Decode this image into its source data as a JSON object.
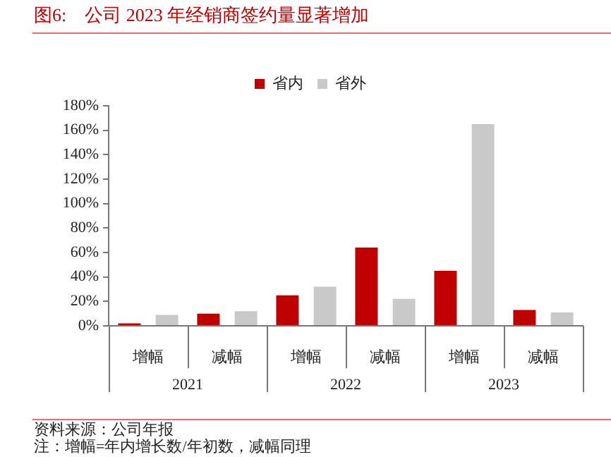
{
  "chart_data": {
    "type": "bar",
    "title": "图6:　公司 2023 年经销商签约量显著增加",
    "categories": [
      "增幅",
      "减幅",
      "增幅",
      "减幅",
      "增幅",
      "减幅"
    ],
    "series": [
      {
        "name": "省内",
        "color": "#c00000",
        "values": [
          2,
          10,
          25,
          64,
          45,
          13
        ]
      },
      {
        "name": "省外",
        "color": "#c9c9c9",
        "values": [
          9,
          12,
          32,
          22,
          165,
          11
        ]
      }
    ],
    "ylim": [
      0,
      180
    ],
    "yticks": [
      {
        "value": 0,
        "label": "0%"
      },
      {
        "value": 20,
        "label": "20%"
      },
      {
        "value": 40,
        "label": "40%"
      },
      {
        "value": 60,
        "label": "60%"
      },
      {
        "value": 80,
        "label": "80%"
      },
      {
        "value": 100,
        "label": "100%"
      },
      {
        "value": 120,
        "label": "120%"
      },
      {
        "value": 140,
        "label": "140%"
      },
      {
        "value": 160,
        "label": "160%"
      },
      {
        "value": 180,
        "label": "180%"
      }
    ],
    "grid": false,
    "legend": "top",
    "annotations": [
      "2021",
      "2022",
      "2023",
      "资料来源：公司年报",
      "注：增幅=年内增长数/年初数，减幅同理"
    ]
  }
}
